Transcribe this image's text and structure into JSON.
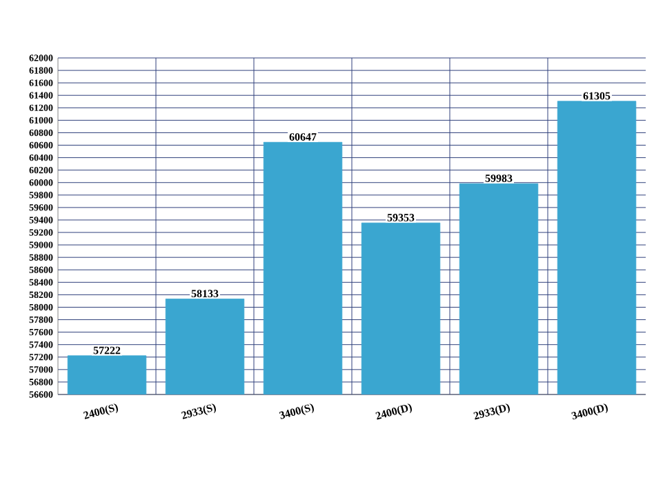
{
  "chart_data": {
    "type": "bar",
    "categories": [
      "2400(S)",
      "2933(S)",
      "3400(S)",
      "2400(D)",
      "2933(D)",
      "3400(D)"
    ],
    "values": [
      57222,
      58133,
      60647,
      59353,
      59983,
      61305
    ],
    "color": "#3aa6d0",
    "ylim": [
      56600,
      62000
    ],
    "yticks": [
      56600,
      56800,
      57000,
      57200,
      57400,
      57600,
      57800,
      58000,
      58200,
      58400,
      58600,
      58800,
      59000,
      59200,
      59400,
      59600,
      59800,
      60000,
      60200,
      60400,
      60600,
      60800,
      61000,
      61200,
      61400,
      61600,
      61800,
      62000
    ],
    "grid": true,
    "data_labels": true
  }
}
